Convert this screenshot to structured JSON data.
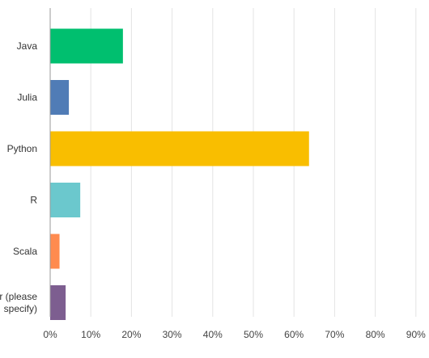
{
  "chart_data": {
    "type": "bar",
    "orientation": "horizontal",
    "categories": [
      {
        "lines": [
          "Java"
        ]
      },
      {
        "lines": [
          "Julia"
        ]
      },
      {
        "lines": [
          "Python"
        ]
      },
      {
        "lines": [
          "R"
        ]
      },
      {
        "lines": [
          "Scala"
        ]
      },
      {
        "lines": [
          "Other (please",
          "specify)"
        ]
      }
    ],
    "values": [
      17.9,
      4.6,
      63.7,
      7.4,
      2.3,
      3.8
    ],
    "colors": [
      "#00bf6f",
      "#507cb6",
      "#f9be00",
      "#6bc8cd",
      "#ff8b4f",
      "#7d5e90"
    ],
    "xlim": [
      0,
      100
    ],
    "x_ticks": [
      0,
      10,
      20,
      30,
      40,
      50,
      60,
      70,
      80,
      90
    ],
    "tick_suffix": "%",
    "grid": true,
    "title": "",
    "xlabel": "",
    "ylabel": ""
  }
}
